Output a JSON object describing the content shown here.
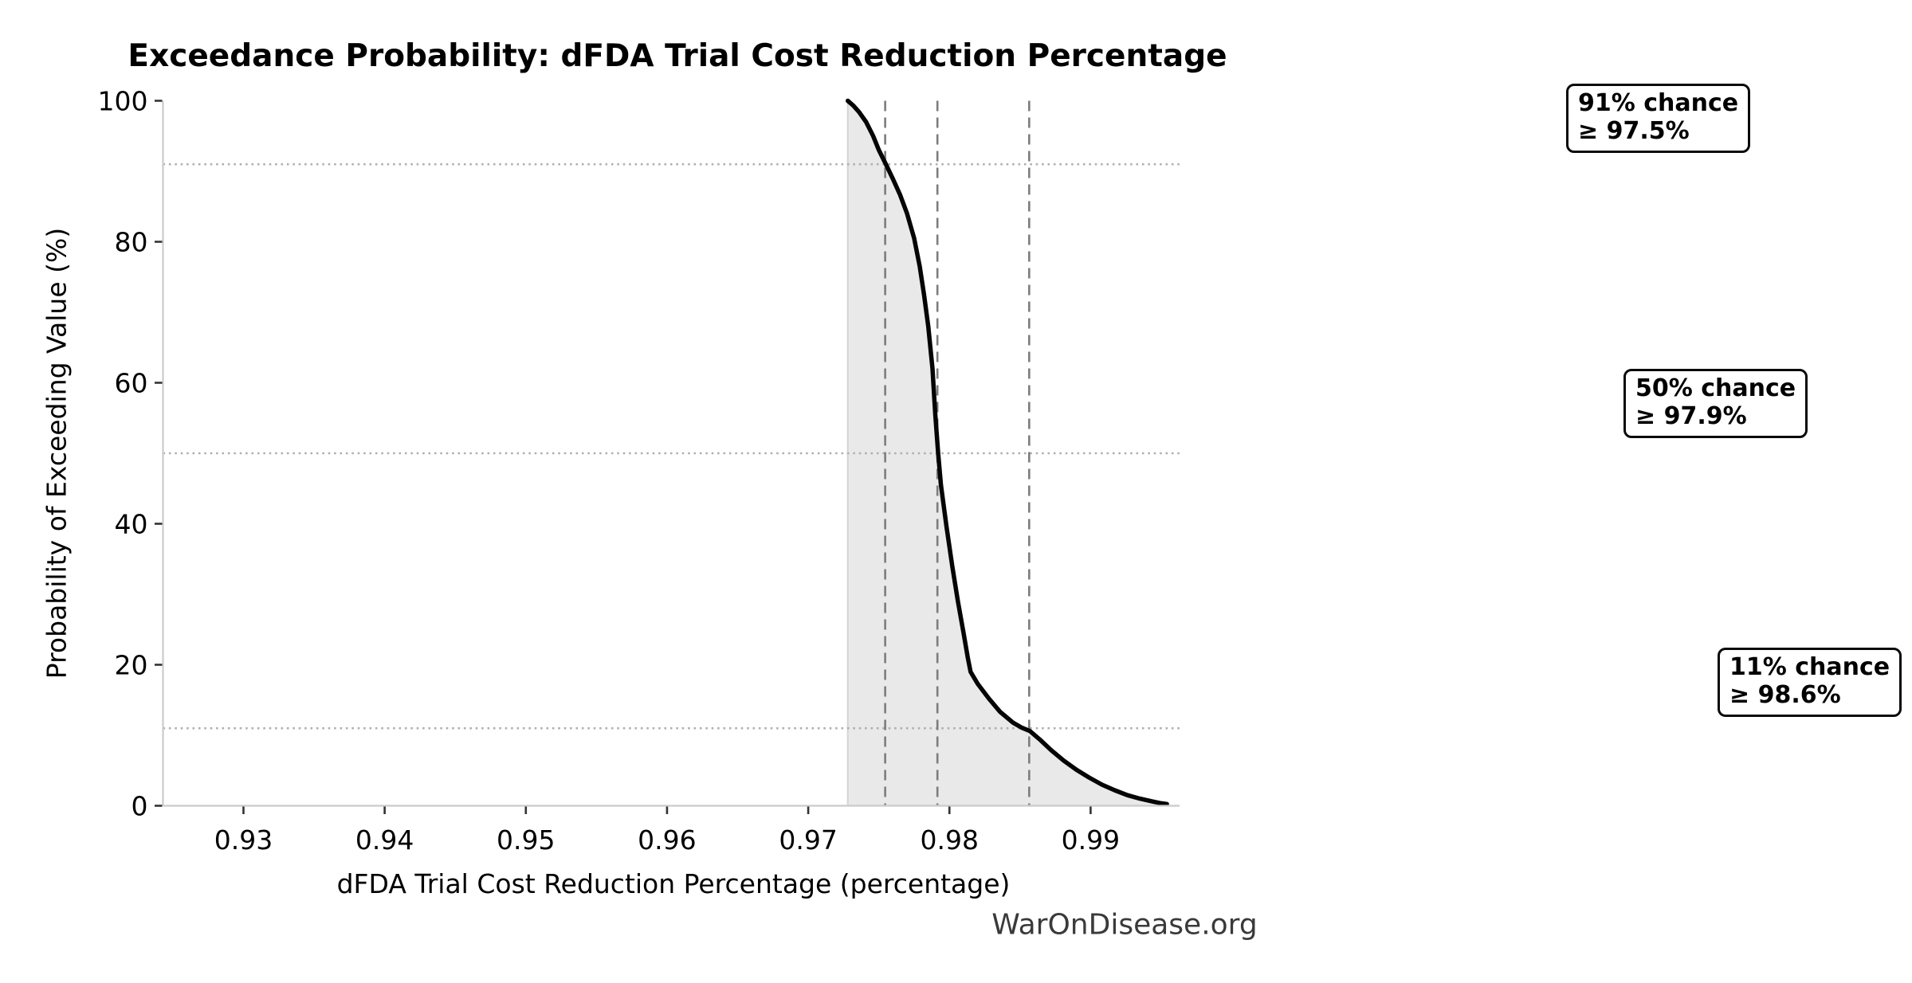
{
  "chart_data": {
    "type": "line",
    "title": "Exceedance Probability: dFDA Trial Cost Reduction Percentage",
    "xlabel": "dFDA Trial Cost Reduction Percentage (percentage)",
    "ylabel": "Probability of Exceeding Value (%)",
    "xlim": [
      0.9243,
      0.9963
    ],
    "ylim": [
      0,
      100
    ],
    "x_ticks": [
      0.93,
      0.94,
      0.95,
      0.96,
      0.97,
      0.98,
      0.99
    ],
    "x_tick_labels": [
      "0.93",
      "0.94",
      "0.95",
      "0.96",
      "0.97",
      "0.98",
      "0.99"
    ],
    "y_ticks": [
      0,
      20,
      40,
      60,
      80,
      100
    ],
    "y_tick_labels": [
      "0",
      "20",
      "40",
      "60",
      "80",
      "100"
    ],
    "grid": "reference-lines-only",
    "legend": "none",
    "series": [
      {
        "name": "exceedance-probability",
        "fill_to_zero": true,
        "points": [
          [
            0.9728,
            100
          ],
          [
            0.9732,
            99.3
          ],
          [
            0.9736,
            98.4
          ],
          [
            0.9741,
            97.0
          ],
          [
            0.9746,
            95.0
          ],
          [
            0.975,
            93.0
          ],
          [
            0.9755,
            91.0
          ],
          [
            0.976,
            88.9
          ],
          [
            0.9765,
            86.7
          ],
          [
            0.977,
            84.0
          ],
          [
            0.9775,
            80.5
          ],
          [
            0.9779,
            76.5
          ],
          [
            0.9782,
            72.5
          ],
          [
            0.9785,
            68.0
          ],
          [
            0.9788,
            62.0
          ],
          [
            0.979,
            55.5
          ],
          [
            0.9792,
            50.0
          ],
          [
            0.9794,
            45.5
          ],
          [
            0.9798,
            39.5
          ],
          [
            0.9802,
            34.0
          ],
          [
            0.9806,
            29.0
          ],
          [
            0.981,
            24.5
          ],
          [
            0.9813,
            21.0
          ],
          [
            0.9815,
            19.0
          ],
          [
            0.982,
            17.3
          ],
          [
            0.9828,
            15.2
          ],
          [
            0.9836,
            13.3
          ],
          [
            0.9845,
            11.8
          ],
          [
            0.9851,
            11.1
          ],
          [
            0.9857,
            10.6
          ],
          [
            0.9864,
            9.4
          ],
          [
            0.9872,
            7.9
          ],
          [
            0.9881,
            6.4
          ],
          [
            0.989,
            5.1
          ],
          [
            0.9899,
            4.0
          ],
          [
            0.9908,
            3.0
          ],
          [
            0.9917,
            2.2
          ],
          [
            0.9926,
            1.5
          ],
          [
            0.9935,
            1.0
          ],
          [
            0.9944,
            0.6
          ],
          [
            0.995,
            0.35
          ],
          [
            0.9954,
            0.25
          ]
        ]
      }
    ],
    "probability_gridlines_pct": [
      91,
      50,
      11
    ],
    "quantile_lines_x": [
      0.97545,
      0.97915,
      0.98565
    ],
    "annotations": [
      {
        "line1": "91% chance",
        "line2": "≥ 97.5%"
      },
      {
        "line1": "50% chance",
        "line2": "≥ 97.9%"
      },
      {
        "line1": "11% chance",
        "line2": "≥ 98.6%"
      }
    ],
    "colors": {
      "curve": "#050505",
      "fill": "#e9e9e9",
      "fill_edge": "#d4d4d4",
      "dotted_reference": "#b0b0b0",
      "dashed_quantile": "#7d7d7d",
      "spine": "#cbcbcb",
      "tick": "#333333",
      "watermark_text": "#3a3a3a"
    }
  },
  "footer": {
    "watermark": "WarOnDisease.org"
  }
}
